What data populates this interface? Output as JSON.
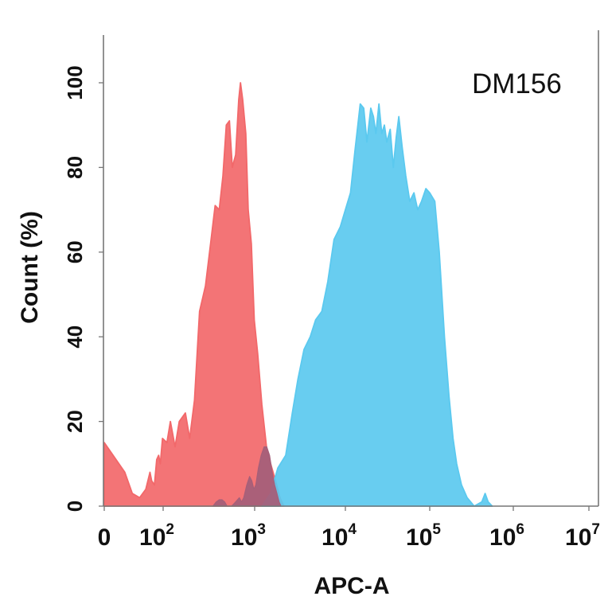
{
  "chart_data": {
    "type": "area",
    "title": "",
    "annotation": "DM156",
    "xlabel": "APC-A",
    "ylabel": "Count  (%)",
    "x_scale": "log",
    "xlim": [
      0,
      10000000
    ],
    "ylim": [
      0,
      110
    ],
    "x_ticks": [
      {
        "value": 0,
        "base": "0",
        "exp": ""
      },
      {
        "value": 100,
        "base": "10",
        "exp": "2"
      },
      {
        "value": 1000,
        "base": "10",
        "exp": "3"
      },
      {
        "value": 10000,
        "base": "10",
        "exp": "4"
      },
      {
        "value": 100000,
        "base": "10",
        "exp": "5"
      },
      {
        "value": 1000000,
        "base": "10",
        "exp": "6"
      },
      {
        "value": 10000000,
        "base": "10",
        "exp": "7"
      }
    ],
    "y_ticks": [
      {
        "value": 0,
        "label": "0"
      },
      {
        "value": 20,
        "label": "20"
      },
      {
        "value": 40,
        "label": "40"
      },
      {
        "value": 60,
        "label": "60"
      },
      {
        "value": 80,
        "label": "80"
      },
      {
        "value": 100,
        "label": "100"
      }
    ],
    "grid": false,
    "legend": "none",
    "series": [
      {
        "color": "#f2686a",
        "points": [
          [
            0,
            15
          ],
          [
            4,
            8
          ],
          [
            8,
            3
          ],
          [
            15,
            2
          ],
          [
            25,
            4
          ],
          [
            35,
            8
          ],
          [
            40,
            6
          ],
          [
            50,
            5
          ],
          [
            60,
            11
          ],
          [
            70,
            12
          ],
          [
            80,
            10
          ],
          [
            95,
            16
          ],
          [
            110,
            15
          ],
          [
            120,
            20
          ],
          [
            135,
            14
          ],
          [
            150,
            20
          ],
          [
            175,
            22
          ],
          [
            195,
            16
          ],
          [
            220,
            25
          ],
          [
            250,
            46
          ],
          [
            290,
            52
          ],
          [
            330,
            62
          ],
          [
            370,
            71
          ],
          [
            410,
            70
          ],
          [
            450,
            78
          ],
          [
            490,
            90
          ],
          [
            530,
            91
          ],
          [
            570,
            80
          ],
          [
            620,
            83
          ],
          [
            670,
            96
          ],
          [
            700,
            100
          ],
          [
            740,
            96
          ],
          [
            800,
            88
          ],
          [
            850,
            70
          ],
          [
            920,
            62
          ],
          [
            990,
            44
          ],
          [
            1080,
            36
          ],
          [
            1200,
            24
          ],
          [
            1350,
            14
          ],
          [
            1500,
            10
          ],
          [
            1700,
            6
          ],
          [
            1900,
            2
          ],
          [
            2100,
            0
          ]
        ]
      },
      {
        "color": "#5bc9ef",
        "points": [
          [
            1200,
            0
          ],
          [
            1500,
            3
          ],
          [
            1800,
            9
          ],
          [
            2200,
            12
          ],
          [
            2600,
            22
          ],
          [
            3000,
            30
          ],
          [
            3500,
            37
          ],
          [
            4100,
            40
          ],
          [
            4700,
            44
          ],
          [
            5500,
            46
          ],
          [
            6400,
            53
          ],
          [
            7500,
            63
          ],
          [
            8800,
            66
          ],
          [
            10000,
            70
          ],
          [
            11500,
            74
          ],
          [
            13000,
            84
          ],
          [
            15000,
            95
          ],
          [
            16500,
            94
          ],
          [
            18000,
            86
          ],
          [
            20000,
            94
          ],
          [
            21500,
            92
          ],
          [
            23000,
            88
          ],
          [
            25000,
            95
          ],
          [
            27000,
            88
          ],
          [
            29000,
            90
          ],
          [
            31000,
            86
          ],
          [
            34000,
            89
          ],
          [
            37000,
            80
          ],
          [
            40000,
            87
          ],
          [
            43000,
            92
          ],
          [
            47000,
            85
          ],
          [
            52000,
            78
          ],
          [
            58000,
            72
          ],
          [
            65000,
            74
          ],
          [
            72000,
            70
          ],
          [
            80000,
            72
          ],
          [
            90000,
            75
          ],
          [
            100000,
            74
          ],
          [
            115000,
            72
          ],
          [
            130000,
            60
          ],
          [
            150000,
            40
          ],
          [
            170000,
            26
          ],
          [
            190000,
            16
          ],
          [
            210000,
            10
          ],
          [
            240000,
            5
          ],
          [
            280000,
            2
          ],
          [
            340000,
            0
          ],
          [
            420000,
            1
          ],
          [
            460000,
            3
          ],
          [
            500000,
            1
          ],
          [
            560000,
            0
          ]
        ]
      },
      {
        "color": "#a55f79",
        "points": [
          [
            350,
            0
          ],
          [
            380,
            1
          ],
          [
            410,
            1.5
          ],
          [
            440,
            1.5
          ],
          [
            470,
            1
          ],
          [
            500,
            0
          ],
          [
            560,
            0
          ],
          [
            620,
            1
          ],
          [
            680,
            2
          ],
          [
            720,
            1
          ],
          [
            760,
            2
          ],
          [
            820,
            5
          ],
          [
            880,
            7
          ],
          [
            930,
            6
          ],
          [
            980,
            4
          ],
          [
            1030,
            5
          ],
          [
            1100,
            9
          ],
          [
            1180,
            12
          ],
          [
            1270,
            14
          ],
          [
            1360,
            14
          ],
          [
            1460,
            12
          ],
          [
            1560,
            8
          ],
          [
            1660,
            5
          ],
          [
            1760,
            3
          ],
          [
            1860,
            1
          ],
          [
            1950,
            0
          ]
        ]
      }
    ]
  }
}
